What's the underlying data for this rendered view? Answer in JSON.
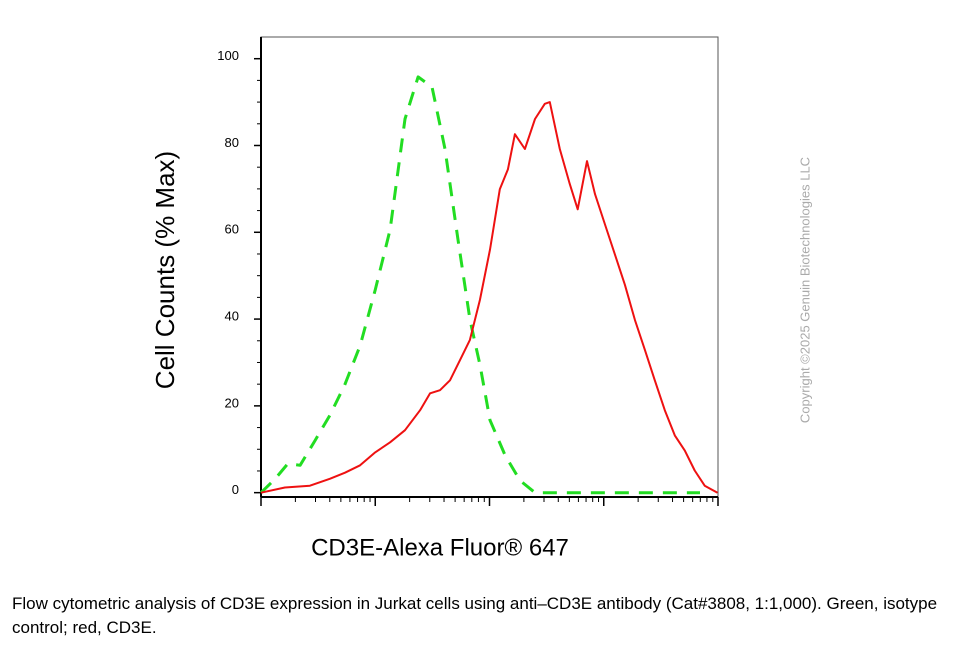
{
  "chart_data": {
    "type": "line",
    "x_label": "CD3E-Alexa Fluor® 647",
    "y_label": "Cell Counts (% Max)",
    "annotation": "Copyright ©2025 Genuin Biotechnologies LLC",
    "caption": "Flow cytometric analysis of CD3E expression in Jurkat cells using anti–CD3E antibody (Cat#3808, 1:1,000). Green, isotype control; red, CD3E.",
    "x_log": true,
    "xlim": [
      1,
      10000
    ],
    "xticks": [
      1,
      10,
      100,
      1000,
      10000
    ],
    "ylim": [
      -1,
      105
    ],
    "yticks": [
      0,
      20,
      40,
      60,
      80,
      100
    ],
    "series": [
      {
        "color": "#22dd22",
        "dash": true,
        "x": [
          1,
          1.33,
          1.72,
          2.2,
          2.97,
          4.0,
          5.4,
          7.4,
          10,
          13.5,
          18.2,
          23.7,
          31.4,
          40.8,
          53,
          67.5,
          82.6,
          101,
          137,
          185,
          250,
          414,
          927,
          2076,
          6960
        ],
        "values": [
          0,
          3.2,
          6.7,
          6.3,
          12.0,
          17.8,
          24.8,
          34.0,
          46.8,
          60.6,
          86.1,
          95.8,
          93.5,
          79.2,
          58.3,
          39.8,
          29.4,
          16.7,
          8.6,
          2.8,
          0,
          0,
          0,
          0,
          0
        ]
      },
      {
        "color": "#ee1111",
        "dash": false,
        "x": [
          1,
          1.62,
          2.68,
          4.0,
          5.43,
          7.37,
          10,
          13.5,
          18.2,
          24.7,
          30.2,
          36.9,
          45.1,
          55.1,
          67.4,
          82.4,
          101,
          123,
          145,
          167,
          204,
          250,
          305,
          337,
          412,
          504,
          592,
          713,
          838,
          1025,
          1253,
          1532,
          1874,
          2290,
          2800,
          3423,
          4185,
          5117,
          6256,
          7649,
          9900
        ],
        "values": [
          0,
          1.2,
          1.6,
          3.2,
          4.6,
          6.3,
          9.3,
          11.6,
          14.4,
          19.0,
          22.9,
          23.6,
          25.9,
          30.5,
          35.2,
          44.4,
          56.0,
          69.9,
          74.5,
          82.6,
          79.2,
          86.1,
          89.6,
          90.0,
          79.2,
          71.1,
          65.3,
          76.4,
          68.8,
          61.8,
          54.9,
          47.9,
          39.8,
          32.9,
          25.9,
          19.0,
          13.2,
          9.7,
          5.1,
          1.6,
          0
        ]
      }
    ]
  }
}
